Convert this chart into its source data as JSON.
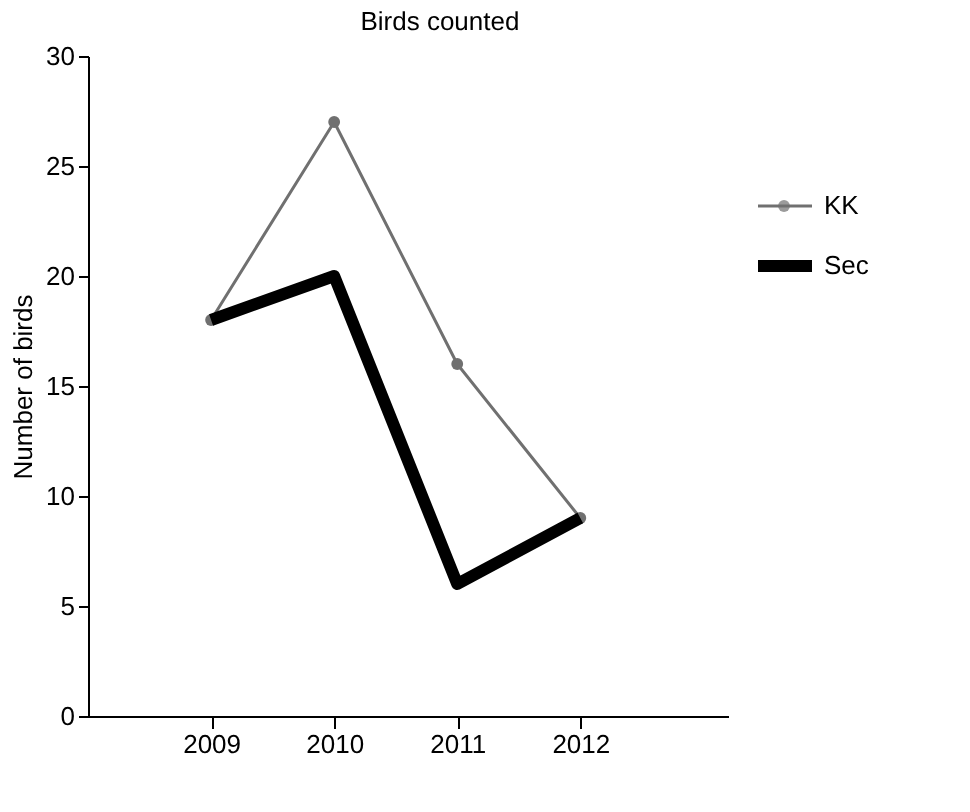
{
  "chart_data": {
    "type": "line",
    "title": "Birds counted",
    "ylabel": "Number of birds",
    "categories": [
      "2009",
      "2010",
      "2011",
      "2012"
    ],
    "series": [
      {
        "name": "KK",
        "color": "#707070",
        "values": [
          18,
          27,
          16,
          9
        ],
        "marker": "circle"
      },
      {
        "name": "Sec",
        "color": "#000000",
        "values": [
          18,
          20,
          6,
          9
        ],
        "marker": "none"
      }
    ],
    "ylim": [
      0,
      30
    ],
    "yticks": [
      0,
      5,
      10,
      15,
      20,
      25,
      30
    ],
    "grid": false,
    "legend": "right"
  }
}
